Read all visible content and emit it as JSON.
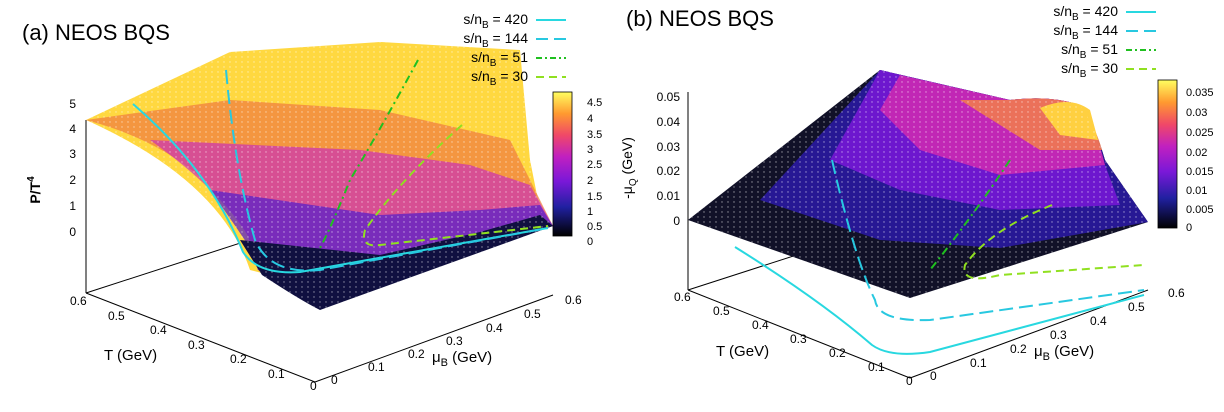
{
  "chart_data": [
    {
      "type": "surface3d",
      "panel": "(a) NEOS BQS",
      "title_prefix": "(a)",
      "title": "NEOS BQS",
      "xlabel": "T (GeV)",
      "ylabel": "μB (GeV)",
      "zlabel": "P/T4",
      "xlim": [
        0,
        0.6
      ],
      "ylim": [
        0,
        0.6
      ],
      "zlim": [
        0,
        5
      ],
      "xticks": [
        "0.6",
        "0.5",
        "0.4",
        "0.3",
        "0.2",
        "0.1",
        "0"
      ],
      "yticks": [
        "0",
        "0.1",
        "0.2",
        "0.3",
        "0.4",
        "0.5",
        "0.6"
      ],
      "zticks": [
        "5",
        "4",
        "3",
        "2",
        "1",
        "0"
      ],
      "colorbar": {
        "min": 0,
        "max": 4.7,
        "ticks": [
          "4.5",
          "4",
          "3.5",
          "3",
          "2.5",
          "2",
          "1.5",
          "1",
          "0.5",
          "0"
        ]
      },
      "series": [
        {
          "name": "s/nB = 420",
          "style": "solid",
          "color": "#28d8e0"
        },
        {
          "name": "s/nB = 144",
          "style": "dashed",
          "color": "#28c8e0"
        },
        {
          "name": "s/nB = 51",
          "style": "dashdot",
          "color": "#20c020"
        },
        {
          "name": "s/nB = 30",
          "style": "dash",
          "color": "#90e020"
        }
      ]
    },
    {
      "type": "surface3d",
      "panel": "(b) NEOS BQS",
      "title_prefix": "(b)",
      "title": "NEOS BQS",
      "xlabel": "T (GeV)",
      "ylabel": "μB (GeV)",
      "zlabel": "-μQ (GeV)",
      "xlim": [
        0,
        0.6
      ],
      "ylim": [
        0,
        0.6
      ],
      "zlim": [
        0,
        0.05
      ],
      "xticks": [
        "0.6",
        "0.5",
        "0.4",
        "0.3",
        "0.2",
        "0.1",
        "0"
      ],
      "yticks": [
        "0",
        "0.1",
        "0.2",
        "0.3",
        "0.4",
        "0.5",
        "0.6"
      ],
      "zticks": [
        "0.05",
        "0.04",
        "0.03",
        "0.02",
        "0.01",
        "0"
      ],
      "colorbar": {
        "min": 0,
        "max": 0.037,
        "ticks": [
          "0.035",
          "0.03",
          "0.025",
          "0.02",
          "0.015",
          "0.01",
          "0.005",
          "0"
        ]
      },
      "series": [
        {
          "name": "s/nB = 420",
          "style": "solid",
          "color": "#28d8e0"
        },
        {
          "name": "s/nB = 144",
          "style": "dashed",
          "color": "#28c8e0"
        },
        {
          "name": "s/nB = 51",
          "style": "dashdot",
          "color": "#20c020"
        },
        {
          "name": "s/nB = 30",
          "style": "dash",
          "color": "#90e020"
        }
      ]
    }
  ]
}
